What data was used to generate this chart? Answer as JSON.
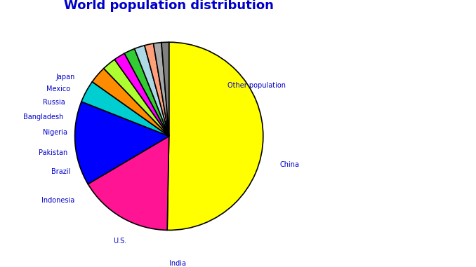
{
  "title": "World population distribution",
  "title_color": "#0000cc",
  "title_fontsize": 13,
  "title_fontweight": "bold",
  "labels": [
    "Other population",
    "China",
    "India",
    "U.S.",
    "Indonesia",
    "Brazil",
    "Pakistan",
    "Nigeria",
    "Bangladesh",
    "Russia",
    "Mexico",
    "Japan"
  ],
  "values": [
    59.0,
    19.0,
    17.0,
    4.5,
    3.5,
    2.8,
    2.3,
    2.2,
    2.1,
    1.8,
    1.6,
    1.5
  ],
  "colors": [
    "#FFFF00",
    "#FF1493",
    "#0000FF",
    "#00CED1",
    "#FF8C00",
    "#ADFF2F",
    "#FF00FF",
    "#32CD32",
    "#ADD8E6",
    "#FFA07A",
    "#A9A9A9",
    "#808080"
  ],
  "label_color": "#0000cc",
  "label_fontsize": 7,
  "startangle": 90,
  "counterclock": false,
  "background_color": "#ffffff"
}
